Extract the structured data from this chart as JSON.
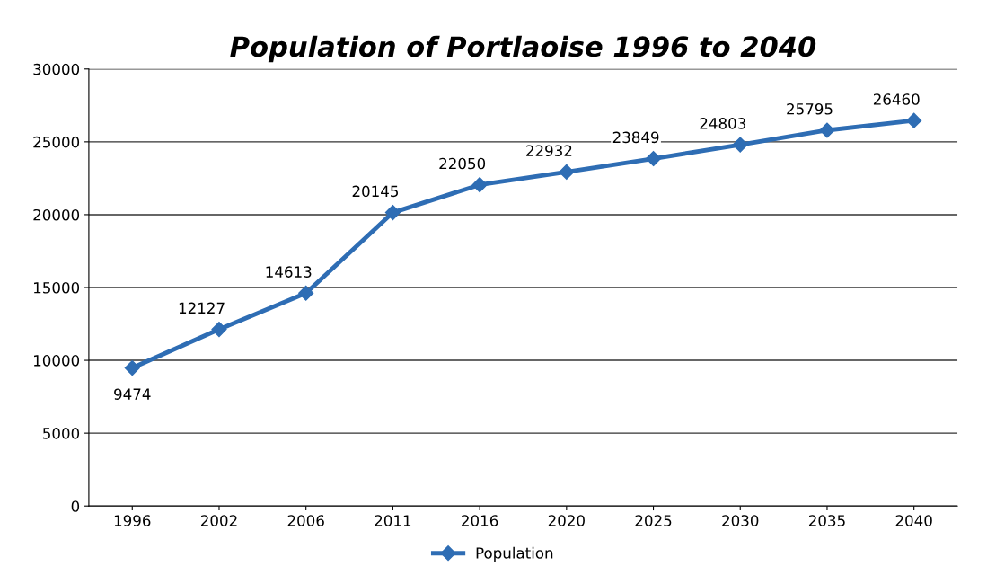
{
  "chart_data": {
    "type": "line",
    "title": "Population of Portlaoise 1996 to 2040",
    "categories": [
      "1996",
      "2002",
      "2006",
      "2011",
      "2016",
      "2020",
      "2025",
      "2030",
      "2035",
      "2040"
    ],
    "series": [
      {
        "name": "Population",
        "color": "#2e6db4",
        "values": [
          9474,
          12127,
          14613,
          20145,
          22050,
          22932,
          23849,
          24803,
          25795,
          26460
        ]
      }
    ],
    "ylim": [
      0,
      30000
    ],
    "yticks": [
      0,
      5000,
      10000,
      15000,
      20000,
      25000,
      30000
    ],
    "grid": "y",
    "legend": "bottom",
    "marker": "diamond",
    "line_style": "solid",
    "data_labels": true
  }
}
